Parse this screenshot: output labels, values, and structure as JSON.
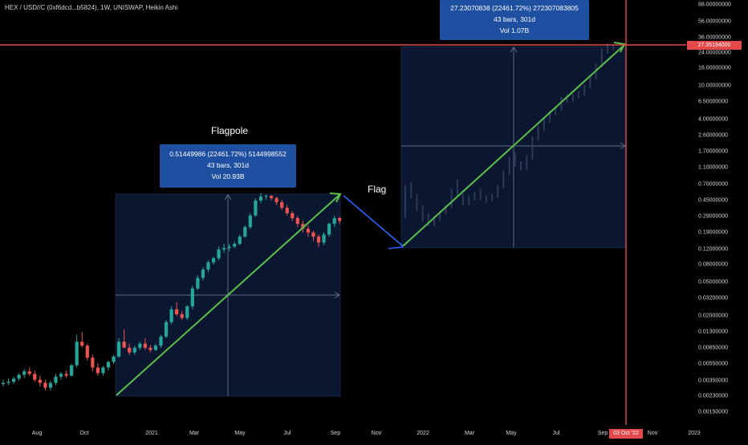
{
  "header": {
    "symbol_title": "HEX / USD//C (0xf6dcd...b5824), 1W, UNISWAP, Heikin Ashi"
  },
  "colors": {
    "background": "#000000",
    "bull_candle": "#26a69a",
    "bear_candle": "#ef5350",
    "trend_line": "#5cbf4a",
    "flag_line": "#2962ff",
    "cursor_line": "#e34949",
    "info_box": "#1e4fa1",
    "range_fill": "#0b1730"
  },
  "y_axis": {
    "ticks": [
      "88.00000000",
      "56.00000000",
      "36.00000000",
      "24.00000000",
      "16.00000000",
      "10.00000000",
      "6.50000000",
      "4.00000000",
      "2.60000000",
      "1.70000000",
      "1.10000000",
      "0.70000000",
      "0.45000000",
      "0.29000000",
      "0.19000000",
      "0.12000000",
      "0.08000000",
      "0.05000000",
      "0.03200000",
      "0.02000000",
      "0.01300000",
      "0.00850000",
      "0.00550000",
      "0.00350000",
      "0.00230000",
      "0.00150000"
    ],
    "current_price_label": "27.35194000"
  },
  "x_axis": {
    "ticks": [
      "Aug",
      "Oct",
      "2021",
      "Mar",
      "May",
      "Jul",
      "Sep",
      "Nov",
      "2022",
      "Mar",
      "May",
      "Jul",
      "Sep",
      "Nov",
      "2023"
    ],
    "cursor_date_label": "03 Oct '22"
  },
  "annotations": {
    "flagpole_label": "Flagpole",
    "flag_label": "Flag",
    "flagpole_box": {
      "line1": "0.51449986 (22461.72%) 5144998552",
      "line2": "43 bars, 301d",
      "line3": "Vol 20.93B"
    },
    "projection_box": {
      "line1": "27.23070838 (22461.72%) 272307083805",
      "line2": "43 bars, 301d",
      "line3": "Vol 1.07B"
    }
  },
  "chart_data": {
    "type": "candlestick",
    "title": "HEX / USD//C (0xf6dcd...b5824), 1W, UNISWAP, Heikin Ashi",
    "y_scale": "log",
    "ylim": [
      0.0012,
      100
    ],
    "x_range": [
      "2020-07",
      "2023-01"
    ],
    "grid": false,
    "flagpole_measure": {
      "start_price": 0.0023,
      "end_price": 0.5167,
      "change": 0.51449986,
      "change_pct": 22461.72,
      "bars": 43,
      "days": 301,
      "volume": "20.93B"
    },
    "flag": {
      "start_price": 0.52,
      "end_price": 0.13
    },
    "projection_measure": {
      "start_price": 0.13,
      "end_price": 27.35194,
      "change": 27.23070838,
      "change_pct": 22461.72,
      "bars": 43,
      "days": 301,
      "volume": "1.07B"
    },
    "current_price": 27.35194,
    "cursor_date": "03 Oct '22",
    "candles": [
      {
        "o": 0.0032,
        "h": 0.0036,
        "l": 0.003,
        "c": 0.0033
      },
      {
        "o": 0.0033,
        "h": 0.0037,
        "l": 0.0031,
        "c": 0.0034
      },
      {
        "o": 0.0034,
        "h": 0.0039,
        "l": 0.0032,
        "c": 0.0037
      },
      {
        "o": 0.0037,
        "h": 0.0043,
        "l": 0.0035,
        "c": 0.0041
      },
      {
        "o": 0.0041,
        "h": 0.0048,
        "l": 0.0038,
        "c": 0.0045
      },
      {
        "o": 0.0045,
        "h": 0.005,
        "l": 0.004,
        "c": 0.0042
      },
      {
        "o": 0.0042,
        "h": 0.0046,
        "l": 0.0034,
        "c": 0.0036
      },
      {
        "o": 0.0036,
        "h": 0.004,
        "l": 0.003,
        "c": 0.0033
      },
      {
        "o": 0.0033,
        "h": 0.0036,
        "l": 0.0027,
        "c": 0.0029
      },
      {
        "o": 0.0029,
        "h": 0.0035,
        "l": 0.0027,
        "c": 0.0033
      },
      {
        "o": 0.0033,
        "h": 0.0042,
        "l": 0.0031,
        "c": 0.0039
      },
      {
        "o": 0.0039,
        "h": 0.0044,
        "l": 0.0036,
        "c": 0.0042
      },
      {
        "o": 0.0042,
        "h": 0.0046,
        "l": 0.0038,
        "c": 0.004
      },
      {
        "o": 0.004,
        "h": 0.0055,
        "l": 0.0039,
        "c": 0.0053
      },
      {
        "o": 0.0053,
        "h": 0.012,
        "l": 0.005,
        "c": 0.01
      },
      {
        "o": 0.01,
        "h": 0.013,
        "l": 0.0085,
        "c": 0.009
      },
      {
        "o": 0.009,
        "h": 0.0095,
        "l": 0.006,
        "c": 0.0065
      },
      {
        "o": 0.0065,
        "h": 0.007,
        "l": 0.0045,
        "c": 0.005
      },
      {
        "o": 0.005,
        "h": 0.0056,
        "l": 0.004,
        "c": 0.0043
      },
      {
        "o": 0.0043,
        "h": 0.0052,
        "l": 0.004,
        "c": 0.005
      },
      {
        "o": 0.005,
        "h": 0.006,
        "l": 0.0046,
        "c": 0.0058
      },
      {
        "o": 0.0058,
        "h": 0.007,
        "l": 0.0055,
        "c": 0.0067
      },
      {
        "o": 0.0067,
        "h": 0.011,
        "l": 0.0065,
        "c": 0.01
      },
      {
        "o": 0.01,
        "h": 0.014,
        "l": 0.009,
        "c": 0.0085
      },
      {
        "o": 0.0085,
        "h": 0.0095,
        "l": 0.007,
        "c": 0.0075
      },
      {
        "o": 0.0075,
        "h": 0.009,
        "l": 0.007,
        "c": 0.0085
      },
      {
        "o": 0.0085,
        "h": 0.01,
        "l": 0.008,
        "c": 0.0095
      },
      {
        "o": 0.0095,
        "h": 0.011,
        "l": 0.008,
        "c": 0.0085
      },
      {
        "o": 0.0085,
        "h": 0.0092,
        "l": 0.0075,
        "c": 0.008
      },
      {
        "o": 0.008,
        "h": 0.0095,
        "l": 0.0078,
        "c": 0.009
      },
      {
        "o": 0.009,
        "h": 0.012,
        "l": 0.0085,
        "c": 0.0115
      },
      {
        "o": 0.0115,
        "h": 0.018,
        "l": 0.011,
        "c": 0.017
      },
      {
        "o": 0.017,
        "h": 0.026,
        "l": 0.016,
        "c": 0.024
      },
      {
        "o": 0.024,
        "h": 0.029,
        "l": 0.02,
        "c": 0.021
      },
      {
        "o": 0.021,
        "h": 0.023,
        "l": 0.018,
        "c": 0.019
      },
      {
        "o": 0.019,
        "h": 0.027,
        "l": 0.018,
        "c": 0.026
      },
      {
        "o": 0.026,
        "h": 0.045,
        "l": 0.024,
        "c": 0.042
      },
      {
        "o": 0.042,
        "h": 0.06,
        "l": 0.04,
        "c": 0.056
      },
      {
        "o": 0.056,
        "h": 0.075,
        "l": 0.052,
        "c": 0.07
      },
      {
        "o": 0.07,
        "h": 0.09,
        "l": 0.065,
        "c": 0.085
      },
      {
        "o": 0.085,
        "h": 0.1,
        "l": 0.08,
        "c": 0.095
      },
      {
        "o": 0.095,
        "h": 0.13,
        "l": 0.09,
        "c": 0.12
      },
      {
        "o": 0.12,
        "h": 0.14,
        "l": 0.11,
        "c": 0.125
      },
      {
        "o": 0.125,
        "h": 0.14,
        "l": 0.115,
        "c": 0.13
      },
      {
        "o": 0.13,
        "h": 0.15,
        "l": 0.125,
        "c": 0.14
      },
      {
        "o": 0.14,
        "h": 0.18,
        "l": 0.135,
        "c": 0.17
      },
      {
        "o": 0.17,
        "h": 0.23,
        "l": 0.165,
        "c": 0.22
      },
      {
        "o": 0.22,
        "h": 0.32,
        "l": 0.21,
        "c": 0.3
      },
      {
        "o": 0.3,
        "h": 0.48,
        "l": 0.29,
        "c": 0.45
      },
      {
        "o": 0.45,
        "h": 0.55,
        "l": 0.42,
        "c": 0.5
      },
      {
        "o": 0.5,
        "h": 0.53,
        "l": 0.46,
        "c": 0.51
      },
      {
        "o": 0.51,
        "h": 0.52,
        "l": 0.45,
        "c": 0.48
      },
      {
        "o": 0.48,
        "h": 0.5,
        "l": 0.4,
        "c": 0.43
      },
      {
        "o": 0.43,
        "h": 0.46,
        "l": 0.35,
        "c": 0.37
      },
      {
        "o": 0.37,
        "h": 0.4,
        "l": 0.3,
        "c": 0.32
      },
      {
        "o": 0.32,
        "h": 0.34,
        "l": 0.26,
        "c": 0.28
      },
      {
        "o": 0.28,
        "h": 0.3,
        "l": 0.22,
        "c": 0.24
      },
      {
        "o": 0.24,
        "h": 0.26,
        "l": 0.19,
        "c": 0.21
      },
      {
        "o": 0.21,
        "h": 0.23,
        "l": 0.17,
        "c": 0.19
      },
      {
        "o": 0.19,
        "h": 0.2,
        "l": 0.15,
        "c": 0.17
      },
      {
        "o": 0.17,
        "h": 0.18,
        "l": 0.13,
        "c": 0.145
      },
      {
        "o": 0.145,
        "h": 0.19,
        "l": 0.135,
        "c": 0.18
      },
      {
        "o": 0.18,
        "h": 0.25,
        "l": 0.17,
        "c": 0.24
      },
      {
        "o": 0.24,
        "h": 0.3,
        "l": 0.22,
        "c": 0.28
      },
      {
        "o": 0.28,
        "h": 0.29,
        "l": 0.24,
        "c": 0.26
      }
    ]
  }
}
